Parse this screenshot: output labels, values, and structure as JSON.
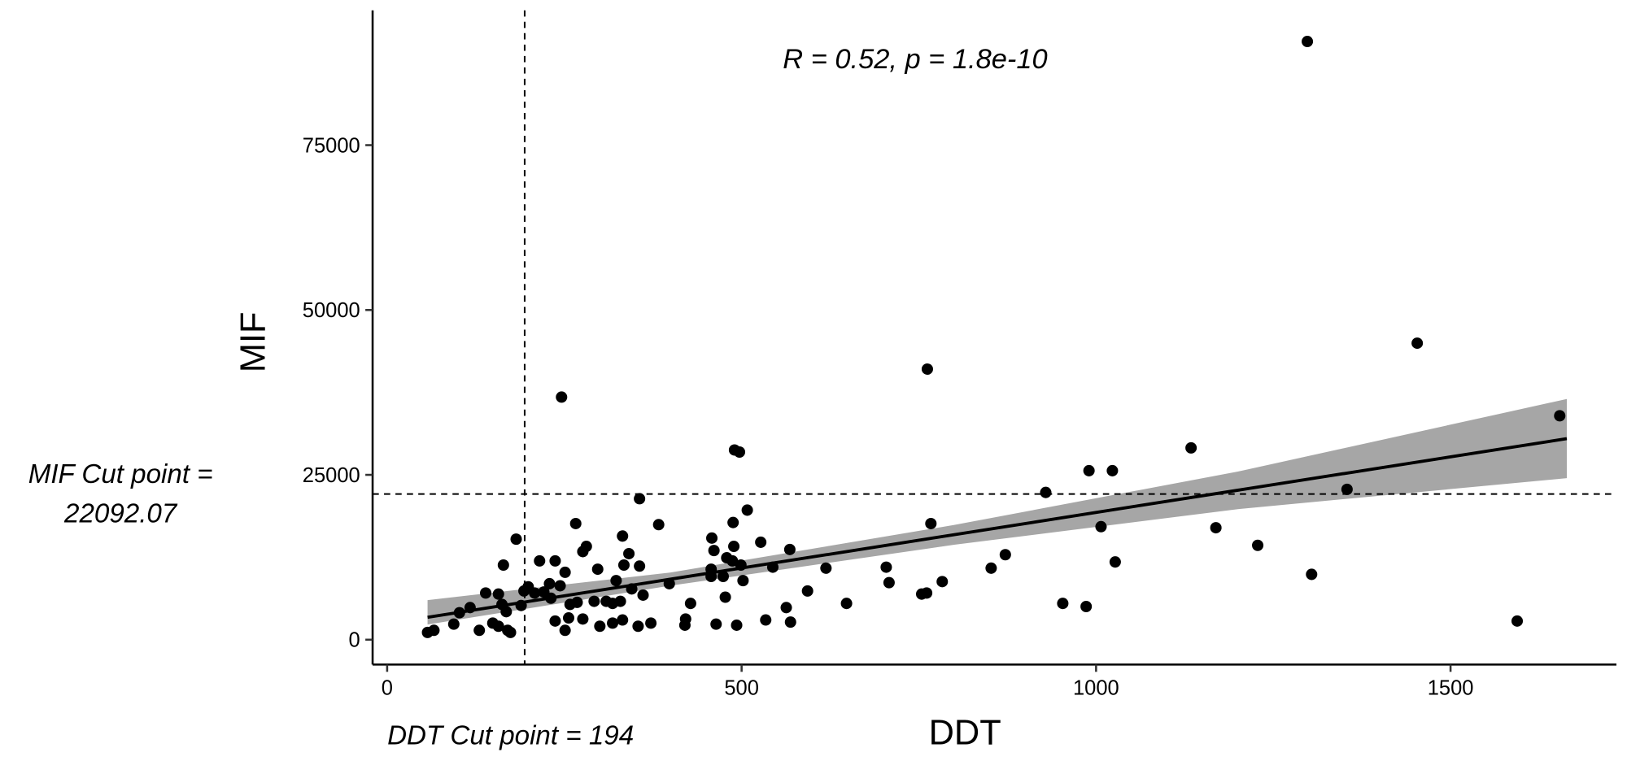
{
  "chart_data": {
    "type": "scatter",
    "annotation": "R = 0.52, p = 1.8e-10",
    "x_label": "DDT",
    "y_label": "MIF",
    "xlim": [
      -20.5,
      1734
    ],
    "ylim": [
      -3774,
      95440
    ],
    "xticks": [
      0,
      500,
      1000,
      1500
    ],
    "yticks": [
      0,
      25000,
      50000,
      75000
    ],
    "grid": false,
    "color": "#000000",
    "x": [
      1298,
      1453,
      762,
      246,
      1654,
      490,
      497,
      1134,
      990,
      1023,
      929,
      1354,
      356,
      767,
      1007,
      1169,
      1228,
      266,
      383,
      488,
      508,
      182,
      332,
      458,
      527,
      1304,
      1027,
      852,
      872,
      704,
      619,
      708,
      783,
      593,
      563,
      648,
      754,
      761,
      953,
      986,
      1594,
      534,
      569,
      493,
      464,
      420,
      421,
      428,
      372,
      354,
      332,
      318,
      300,
      276,
      251,
      237,
      130,
      170,
      174,
      57,
      66,
      94,
      149,
      157,
      102,
      117,
      139,
      157,
      162,
      168,
      164,
      189,
      193,
      199,
      208,
      215,
      221,
      231,
      237,
      244,
      251,
      258,
      268,
      276,
      281,
      292,
      297,
      309,
      318,
      323,
      329,
      334,
      341,
      345,
      356,
      361,
      398,
      457,
      461,
      474,
      479,
      487,
      489,
      499,
      502,
      544,
      568,
      477,
      457,
      229,
      256
    ],
    "values": [
      90720,
      44970,
      41040,
      36790,
      33960,
      28770,
      28460,
      29090,
      25630,
      25630,
      22330,
      22800,
      21380,
      17610,
      17140,
      16980,
      14310,
      17610,
      17450,
      17770,
      19650,
      15250,
      15720,
      15410,
      14780,
      9910,
      11790,
      10850,
      12890,
      11000,
      10850,
      8650,
      8810,
      7390,
      4870,
      5500,
      6920,
      7080,
      5500,
      5030,
      2830,
      2990,
      2670,
      2200,
      2360,
      2200,
      3140,
      5500,
      2520,
      2040,
      2990,
      2520,
      2040,
      3140,
      1420,
      2830,
      1420,
      1420,
      1100,
      1100,
      1420,
      2360,
      2520,
      2040,
      4090,
      4870,
      7080,
      6920,
      5350,
      4250,
      11320,
      5190,
      7390,
      8020,
      7080,
      11950,
      7230,
      6290,
      11950,
      8180,
      10220,
      5350,
      5660,
      13360,
      14150,
      5820,
      10690,
      5820,
      5500,
      8960,
      5820,
      11320,
      13050,
      7700,
      11160,
      6760,
      8490,
      10690,
      13520,
      9590,
      12420,
      11950,
      14150,
      11320,
      8960,
      11000,
      13680,
      6450,
      9590,
      8490,
      3300
    ],
    "fit": {
      "color": "#000000",
      "band_color": "#a6a6a6",
      "x": [
        57,
        400,
        800,
        1200,
        1664
      ],
      "values": [
        3400,
        9183,
        15927,
        22670,
        30493
      ],
      "lower": [
        2300,
        8200,
        14400,
        19800,
        24500
      ],
      "upper": [
        6000,
        10200,
        17400,
        25500,
        36500
      ]
    },
    "x_cut": {
      "value": 194,
      "label": "DDT Cut point = 194"
    },
    "y_cut": {
      "value": 22092.07,
      "label_lines": [
        "MIF Cut point =",
        "22092.07"
      ]
    }
  }
}
